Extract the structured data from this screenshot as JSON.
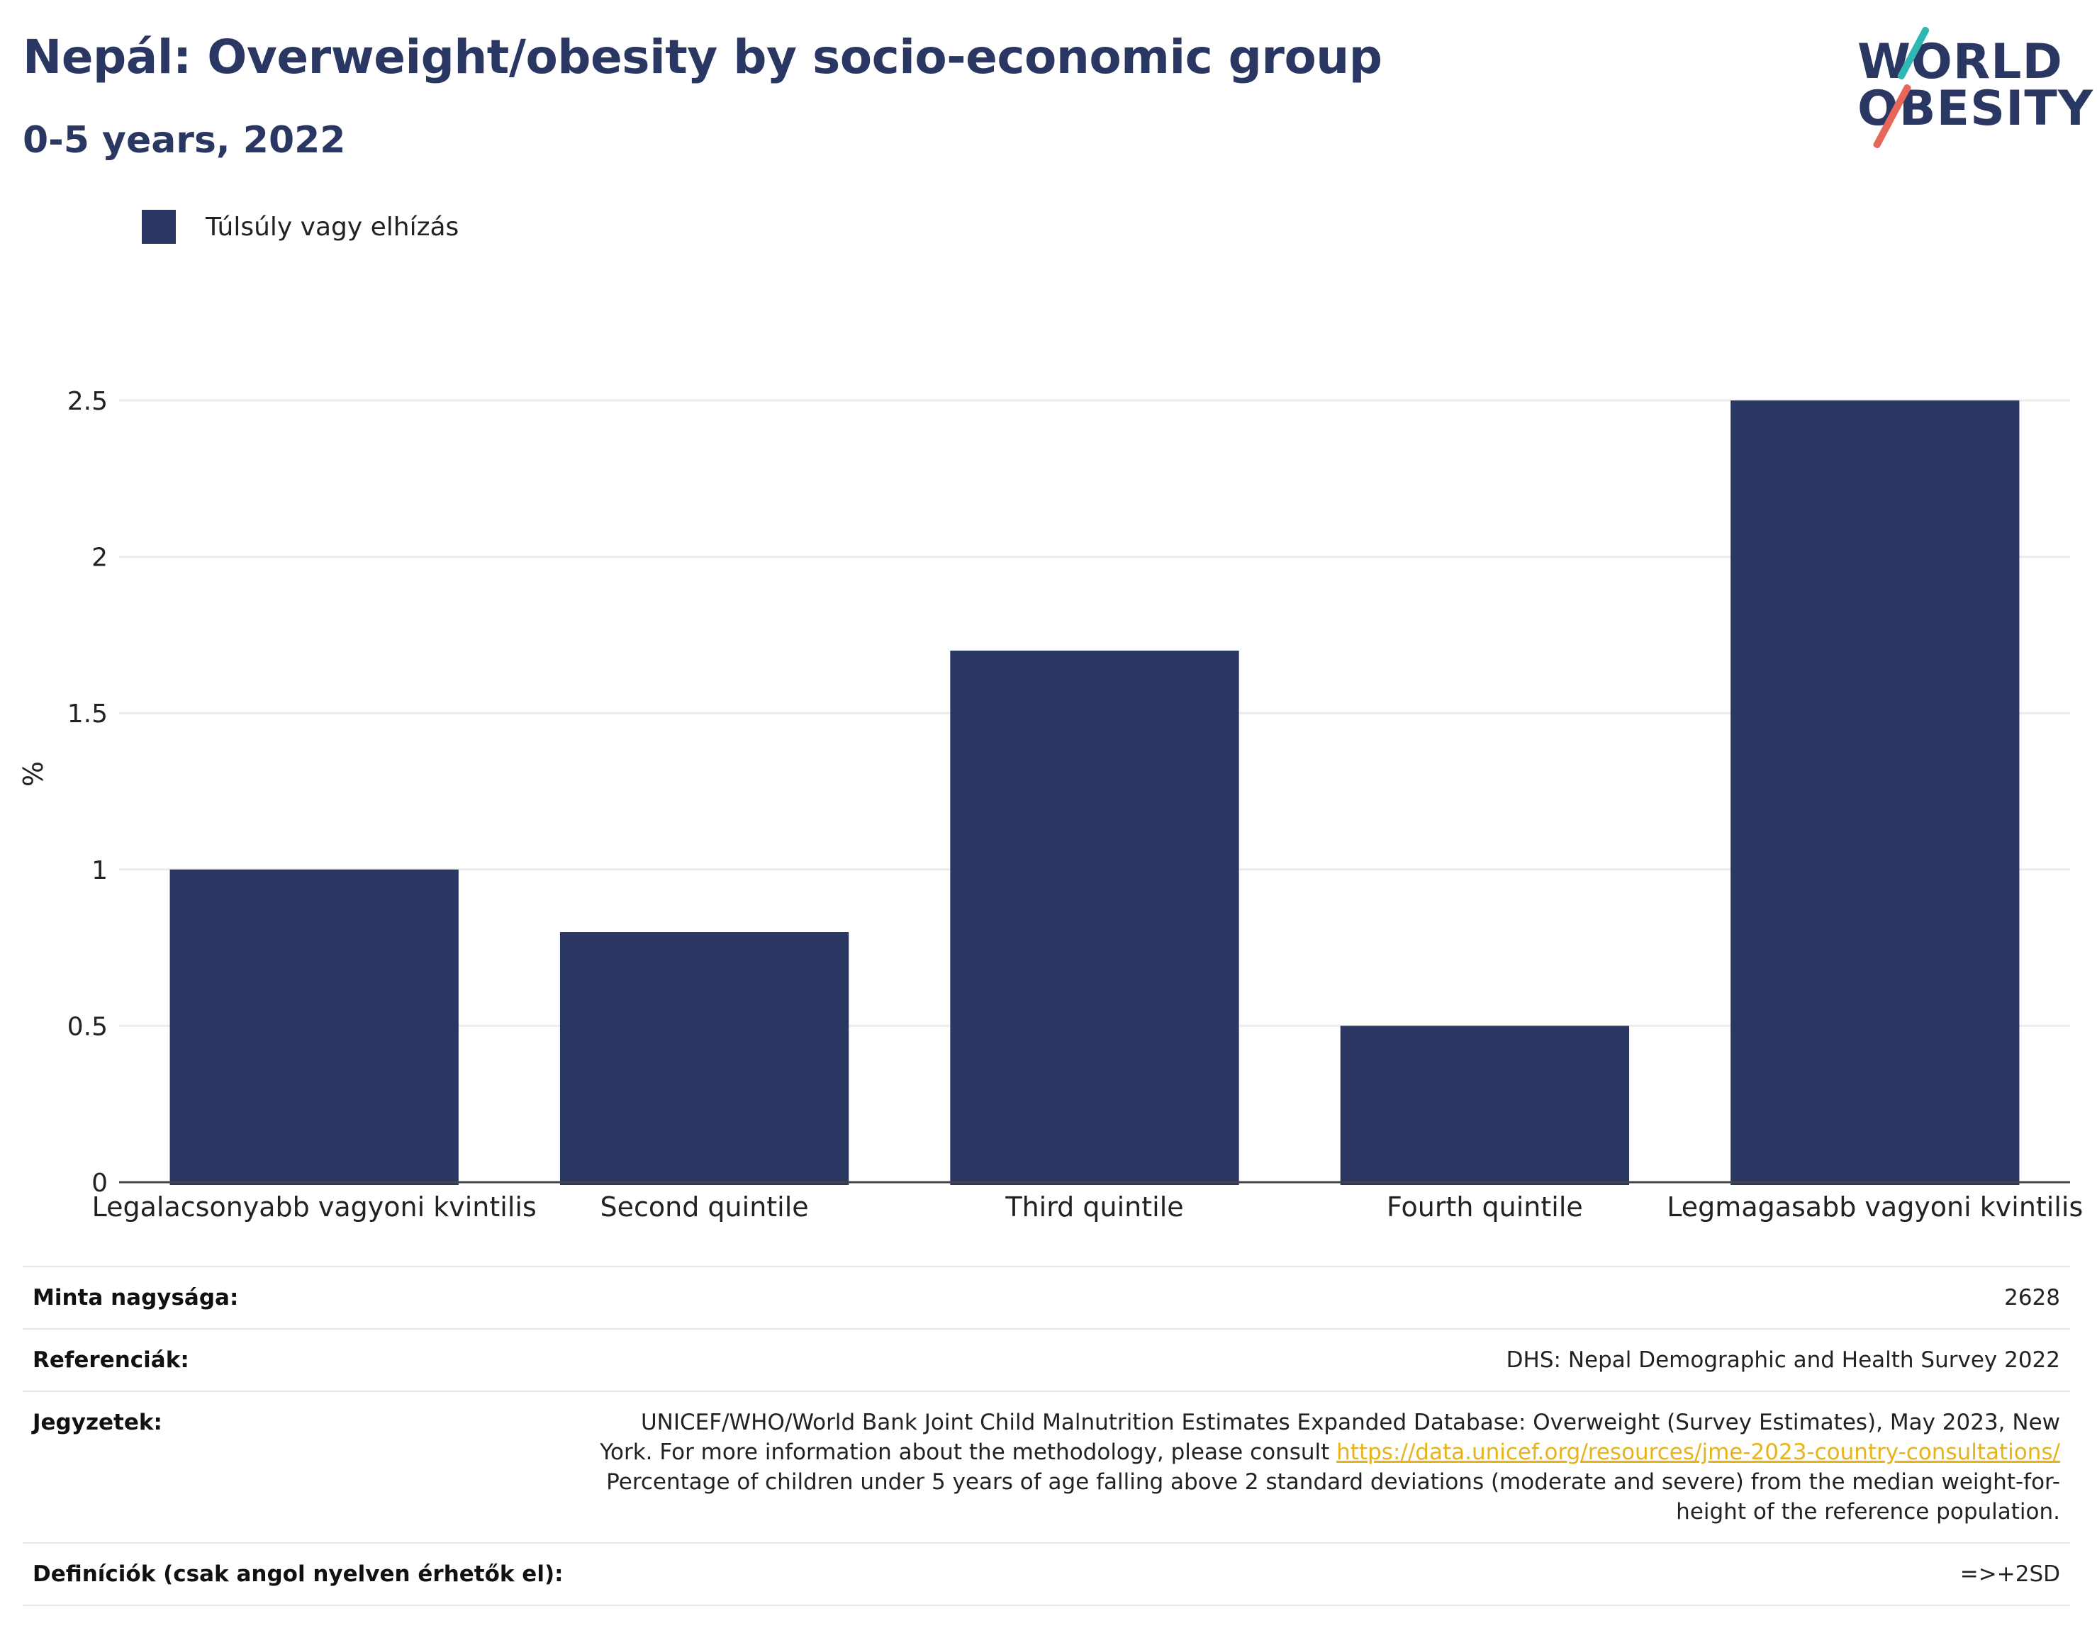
{
  "header": {
    "title": "Nepál: Overweight/obesity by socio-economic group",
    "subtitle": "0-5 years, 2022"
  },
  "logo": {
    "line1": "WORLD",
    "line2": "OBESITY",
    "colors": [
      "#2a3762",
      "#2fb8b3",
      "#e7685a"
    ]
  },
  "legend": {
    "label": "Túlsúly vagy elhízás",
    "color": "#2a3762"
  },
  "chart_data": {
    "type": "bar",
    "categories": [
      "Legalacsonyabb vagyoni kvintilis",
      "Second quintile",
      "Third quintile",
      "Fourth quintile",
      "Legmagasabb vagyoni kvintilis"
    ],
    "series": [
      {
        "name": "Túlsúly vagy elhízás",
        "values": [
          1.0,
          0.8,
          1.7,
          0.5,
          2.5
        ],
        "color": "#2a3762"
      }
    ],
    "ylabel": "%",
    "ylim": [
      0,
      2.5
    ],
    "yticks": [
      "0",
      "0.5",
      "1",
      "1.5",
      "2",
      "2.5"
    ],
    "grid": true,
    "legend_position": "top-left"
  },
  "footer": {
    "sample_label": "Minta nagysága:",
    "sample_value": "2628",
    "references_label": "Referenciák:",
    "references_value": "DHS: Nepal Demographic and Health Survey 2022",
    "notes_label": "Jegyzetek:",
    "notes_text_1": "UNICEF/WHO/World Bank Joint Child Malnutrition Estimates Expanded Database: Overweight (Survey Estimates), May 2023, New York. For more information about the methodology, please consult ",
    "notes_link": "https://data.unicef.org/resources/jme-2023-country-consultations/",
    "notes_text_2": "Percentage of children under 5 years of age falling above 2 standard deviations (moderate and severe) from the median weight-for-height of the reference population.",
    "definitions_label": "Definíciók (csak angol nyelven érhetők el):",
    "definitions_value": "=>+2SD"
  }
}
